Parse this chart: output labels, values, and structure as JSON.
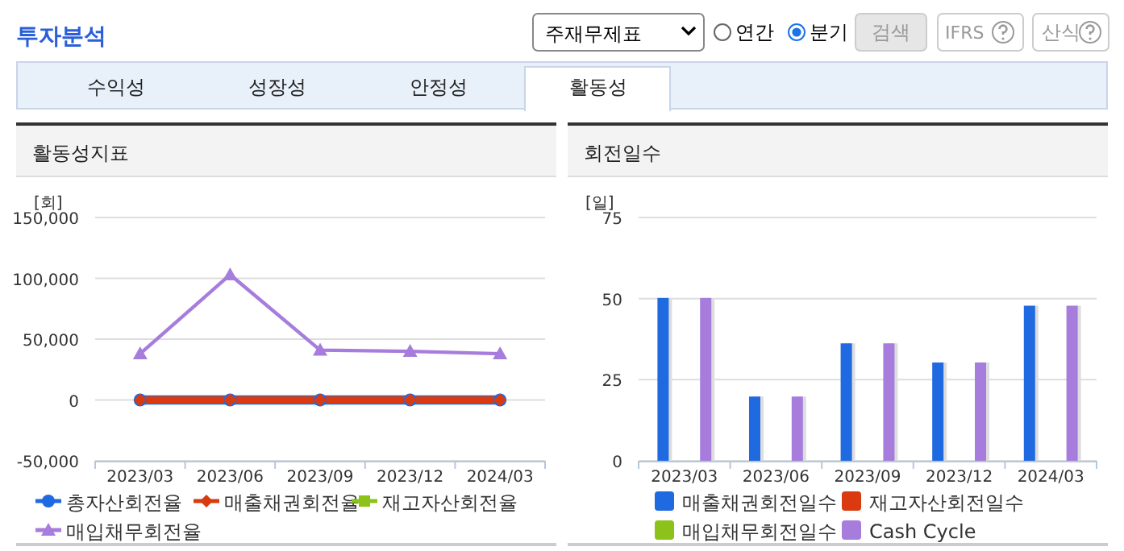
{
  "chart_data": [
    {
      "type": "other",
      "title": "투자분석",
      "annotations": [
        "주재무제표",
        "연간",
        "분기",
        "검색",
        "IFRS",
        "산식",
        "수익성",
        "성장성",
        "안정성",
        "활동성"
      ]
    },
    {
      "type": "line",
      "title": "활동성지표",
      "ylabel": "[회]",
      "categories": [
        "2023/03",
        "2023/06",
        "2023/09",
        "2023/12",
        "2024/03"
      ],
      "ylim": [
        -50000,
        150000
      ],
      "yticks": [
        {
          "value": -50000,
          "label": "-50,000"
        },
        0,
        {
          "value": 50000,
          "label": "50,000"
        },
        {
          "value": 100000,
          "label": "100,000"
        },
        {
          "value": 150000,
          "label": "150,000"
        }
      ],
      "grid": "y",
      "legend": "bottom",
      "series": [
        {
          "name": "총자산회전율",
          "color": "#1f6ae0",
          "marker": "circle",
          "values": [
            0,
            0,
            0,
            0,
            0
          ]
        },
        {
          "name": "매출채권회전율",
          "color": "#d93a10",
          "marker": "diamond",
          "values": [
            0,
            0,
            0,
            0,
            0
          ]
        },
        {
          "name": "재고자산회전율",
          "color": "#8cc21a",
          "marker": "square",
          "values": [
            null,
            null,
            null,
            null,
            null
          ]
        },
        {
          "name": "매입채무회전율",
          "color": "#a67ddc",
          "marker": "triangle",
          "values": [
            38000,
            103000,
            41000,
            40000,
            38000
          ]
        }
      ]
    },
    {
      "type": "bar",
      "title": "회전일수",
      "ylabel": "[일]",
      "categories": [
        "2023/03",
        "2023/06",
        "2023/09",
        "2023/12",
        "2024/03"
      ],
      "ylim": [
        0,
        75
      ],
      "yticks": [
        0,
        25,
        50,
        75
      ],
      "grid": "y",
      "legend": "bottom",
      "series": [
        {
          "name": "매출채권회전일수",
          "color": "#1f6ae0",
          "values": [
            50.2,
            19.8,
            36.2,
            30.3,
            47.8
          ]
        },
        {
          "name": "재고자산회전일수",
          "color": "#d93a10",
          "values": [
            null,
            null,
            null,
            null,
            null
          ]
        },
        {
          "name": "매입채무회전일수",
          "color": "#8cc21a",
          "values": [
            null,
            null,
            null,
            null,
            null
          ]
        },
        {
          "name": "Cash Cycle",
          "color": "#a67ddc",
          "values": [
            50.2,
            19.8,
            36.2,
            30.3,
            47.8
          ]
        }
      ]
    }
  ]
}
